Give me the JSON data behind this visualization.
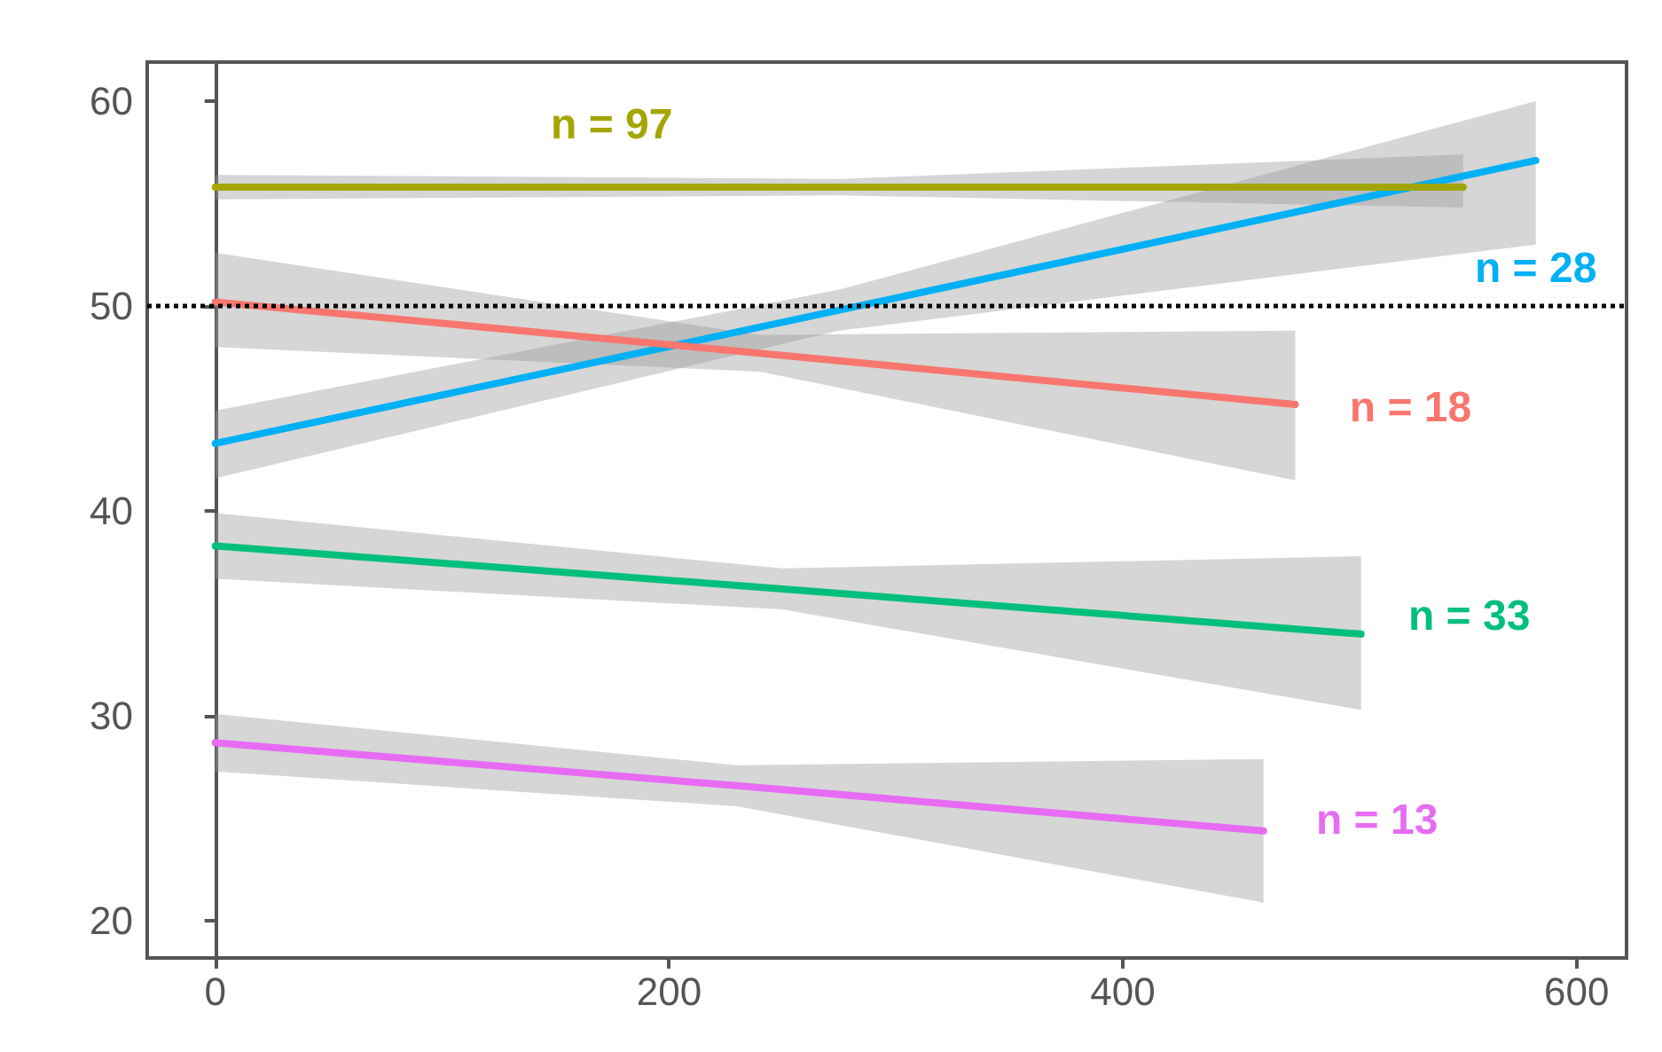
{
  "chart_data": {
    "type": "line",
    "xlim": [
      -30,
      622
    ],
    "xticks": [
      0,
      200,
      400,
      600
    ],
    "ylim": [
      18.2,
      61.9
    ],
    "yticks": [
      20,
      30,
      40,
      50,
      60
    ],
    "grid": false,
    "legend": false,
    "marker": "none",
    "line_style": "solid",
    "series": [
      {
        "name": "n = 28",
        "color": "#00b0f6",
        "x": [
          0,
          275,
          582
        ],
        "values": [
          43.3,
          49.8,
          57.1
        ],
        "lower": [
          41.6,
          48.8,
          53.0
        ],
        "upper": [
          44.9,
          50.8,
          60.0
        ]
      },
      {
        "name": "n = 97",
        "color": "#a3a500",
        "x": [
          0,
          275,
          550
        ],
        "values": [
          55.8,
          55.8,
          55.8
        ],
        "lower": [
          55.2,
          55.4,
          54.8
        ],
        "upper": [
          56.4,
          56.2,
          57.4
        ]
      },
      {
        "name": "n = 18",
        "color": "#f8766d",
        "x": [
          0,
          240,
          476
        ],
        "values": [
          50.2,
          47.7,
          45.2
        ],
        "lower": [
          48.0,
          46.8,
          41.5
        ],
        "upper": [
          52.6,
          48.6,
          48.8
        ]
      },
      {
        "name": "n = 33",
        "color": "#00bf7d",
        "x": [
          0,
          250,
          505
        ],
        "values": [
          38.3,
          36.2,
          34.0
        ],
        "lower": [
          36.7,
          35.2,
          30.3
        ],
        "upper": [
          39.9,
          37.2,
          37.8
        ]
      },
      {
        "name": "n = 13",
        "color": "#e76bf3",
        "x": [
          0,
          230,
          462
        ],
        "values": [
          28.7,
          26.6,
          24.4
        ],
        "lower": [
          27.3,
          25.6,
          20.9
        ],
        "upper": [
          30.1,
          27.6,
          27.9
        ]
      }
    ],
    "ref_lines": [
      {
        "axis": "y",
        "value": 50,
        "color": "#000000",
        "line_style": "dotted"
      }
    ]
  }
}
